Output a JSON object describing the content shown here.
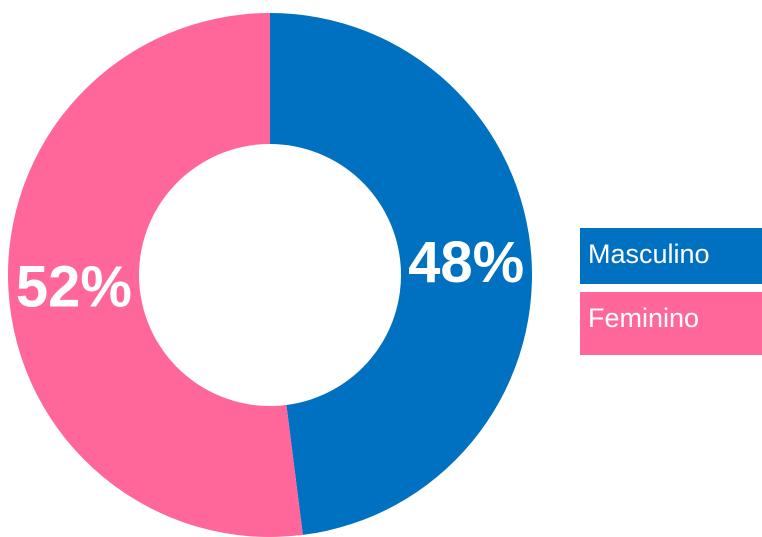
{
  "chart_data": {
    "type": "donut",
    "categories": [
      "Masculino",
      "Feminino"
    ],
    "values": [
      48,
      52
    ],
    "value_labels": [
      "48%",
      "52%"
    ],
    "colors": [
      "#0070c0",
      "#ff6699"
    ]
  }
}
